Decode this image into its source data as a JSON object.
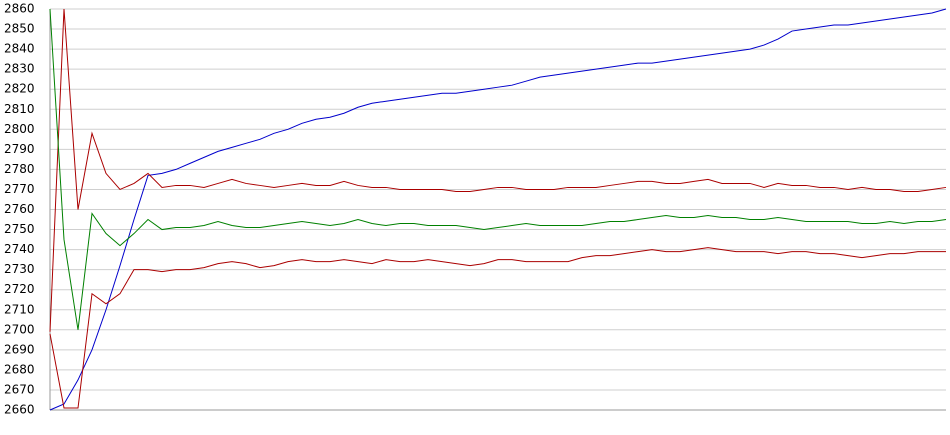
{
  "chart_data": {
    "type": "line",
    "ylim": [
      2660,
      2860
    ],
    "yticks": [
      2660,
      2670,
      2680,
      2690,
      2700,
      2710,
      2720,
      2730,
      2740,
      2750,
      2760,
      2770,
      2780,
      2790,
      2800,
      2810,
      2820,
      2830,
      2840,
      2850,
      2860
    ],
    "grid": true,
    "series": [
      {
        "color": "#0000cc",
        "values": [
          2660,
          2663,
          2675,
          2690,
          2710,
          2732,
          2755,
          2777,
          2778,
          2780,
          2783,
          2786,
          2789,
          2791,
          2793,
          2795,
          2798,
          2800,
          2803,
          2805,
          2806,
          2808,
          2811,
          2813,
          2814,
          2815,
          2816,
          2817,
          2818,
          2818,
          2819,
          2820,
          2821,
          2822,
          2824,
          2826,
          2827,
          2828,
          2829,
          2830,
          2831,
          2832,
          2833,
          2833,
          2834,
          2835,
          2836,
          2837,
          2838,
          2839,
          2840,
          2842,
          2845,
          2849,
          2850,
          2851,
          2852,
          2852,
          2853,
          2854,
          2855,
          2856,
          2857,
          2858,
          2860
        ]
      },
      {
        "color": "#aa0000",
        "values": [
          2699,
          2860,
          2760,
          2798,
          2778,
          2770,
          2773,
          2778,
          2771,
          2772,
          2772,
          2771,
          2773,
          2775,
          2773,
          2772,
          2771,
          2772,
          2773,
          2772,
          2772,
          2774,
          2772,
          2771,
          2771,
          2770,
          2770,
          2770,
          2770,
          2769,
          2769,
          2770,
          2771,
          2771,
          2770,
          2770,
          2770,
          2771,
          2771,
          2771,
          2772,
          2773,
          2774,
          2774,
          2773,
          2773,
          2774,
          2775,
          2773,
          2773,
          2773,
          2771,
          2773,
          2772,
          2772,
          2771,
          2771,
          2770,
          2771,
          2770,
          2770,
          2769,
          2769,
          2770,
          2771
        ]
      },
      {
        "color": "#008000",
        "values": [
          2860,
          2745,
          2700,
          2758,
          2748,
          2742,
          2748,
          2755,
          2750,
          2751,
          2751,
          2752,
          2754,
          2752,
          2751,
          2751,
          2752,
          2753,
          2754,
          2753,
          2752,
          2753,
          2755,
          2753,
          2752,
          2753,
          2753,
          2752,
          2752,
          2752,
          2751,
          2750,
          2751,
          2752,
          2753,
          2752,
          2752,
          2752,
          2752,
          2753,
          2754,
          2754,
          2755,
          2756,
          2757,
          2756,
          2756,
          2757,
          2756,
          2756,
          2755,
          2755,
          2756,
          2755,
          2754,
          2754,
          2754,
          2754,
          2753,
          2753,
          2754,
          2753,
          2754,
          2754,
          2755
        ]
      },
      {
        "color": "#aa0000",
        "values": [
          2698,
          2661,
          2661,
          2718,
          2713,
          2718,
          2730,
          2730,
          2729,
          2730,
          2730,
          2731,
          2733,
          2734,
          2733,
          2731,
          2732,
          2734,
          2735,
          2734,
          2734,
          2735,
          2734,
          2733,
          2735,
          2734,
          2734,
          2735,
          2734,
          2733,
          2732,
          2733,
          2735,
          2735,
          2734,
          2734,
          2734,
          2734,
          2736,
          2737,
          2737,
          2738,
          2739,
          2740,
          2739,
          2739,
          2740,
          2741,
          2740,
          2739,
          2739,
          2739,
          2738,
          2739,
          2739,
          2738,
          2738,
          2737,
          2736,
          2737,
          2738,
          2738,
          2739,
          2739,
          2739
        ]
      }
    ]
  }
}
